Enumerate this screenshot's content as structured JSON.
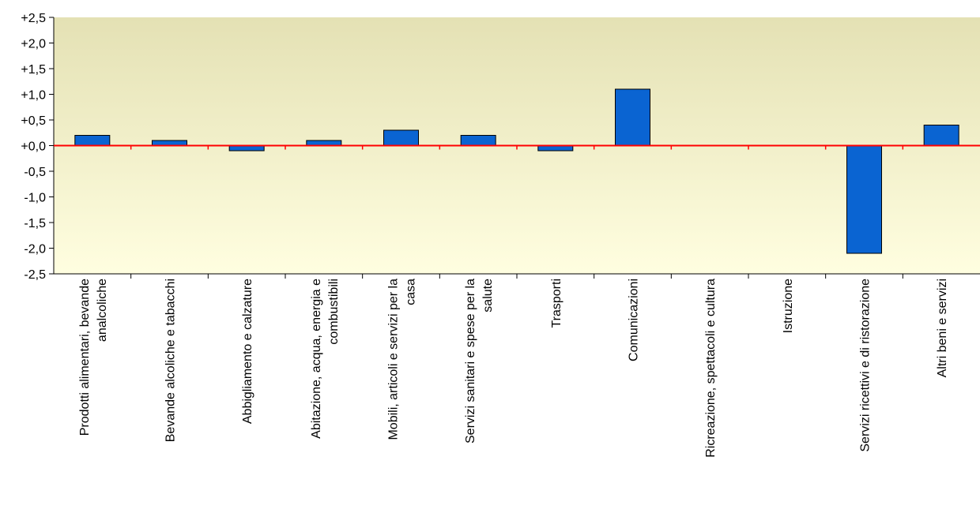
{
  "chart_data": {
    "type": "bar",
    "title": "",
    "xlabel": "",
    "ylabel": "",
    "ylim": [
      -2.5,
      2.5
    ],
    "yticks": [
      2.5,
      2.0,
      1.5,
      1.0,
      0.5,
      0.0,
      -0.5,
      -1.0,
      -1.5,
      -2.0,
      -2.5
    ],
    "ytick_labels": [
      "+2,5",
      "+2,0",
      "+1,5",
      "+1,0",
      "+0,5",
      "+0,0",
      "-0,5",
      "-1,0",
      "-1,5",
      "-2,0",
      "-2,5"
    ],
    "categories": [
      "Prodotti alimentari, bevande analcoliche",
      "Bevande alcoliche e tabacchi",
      "Abbigliamento e calzature",
      "Abitazione, acqua, energia e combustibili",
      "Mobili, articoli e servizi per la casa",
      "Servizi sanitari e spese per la salute",
      "Trasporti",
      "Comunicazioni",
      "Ricreazione, spettacoli e cultura",
      "Istruzione",
      "Servizi ricettivi e di ristorazione",
      "Altri beni e servizi"
    ],
    "category_lines": [
      [
        "Prodotti alimentari, bevande",
        "analcoliche"
      ],
      [
        "Bevande alcoliche e tabacchi"
      ],
      [
        "Abbigliamento e calzature"
      ],
      [
        "Abitazione, acqua, energia e",
        "combustibili"
      ],
      [
        "Mobili, articoli e servizi per la",
        "casa"
      ],
      [
        "Servizi sanitari e spese per la",
        "salute"
      ],
      [
        "Trasporti"
      ],
      [
        "Comunicazioni"
      ],
      [
        "Ricreazione, spettacoli e cultura"
      ],
      [
        "Istruzione"
      ],
      [
        "Servizi ricettivi e di ristorazione"
      ],
      [
        "Altri beni e servizi"
      ]
    ],
    "values": [
      0.2,
      0.1,
      -0.1,
      0.1,
      0.3,
      0.2,
      -0.1,
      1.1,
      0.0,
      0.0,
      -2.1,
      0.4
    ],
    "grid": false,
    "legend": "none",
    "colors": {
      "bar": "#0a64d2",
      "bar_border": "#000000",
      "zero_line": "#ff0000",
      "plot_bg_top": "#e4e1b4",
      "plot_bg_bottom": "#fffee0"
    }
  }
}
